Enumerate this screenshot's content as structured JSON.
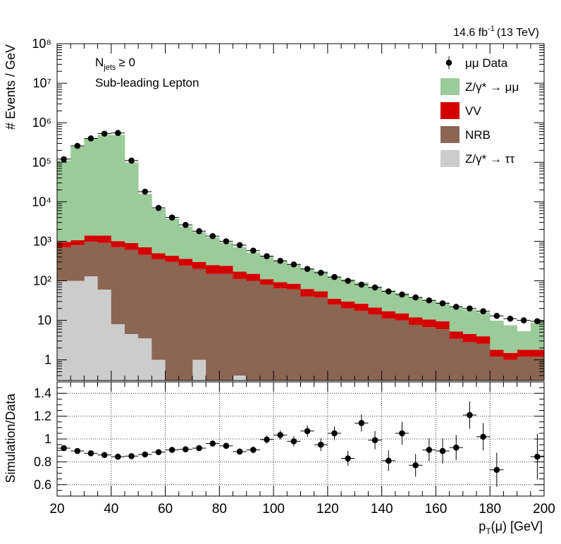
{
  "header": {
    "lumi_text": "14.6 fb",
    "lumi_sup": "-1",
    "energy_text": "(13 TeV)"
  },
  "annotations": {
    "njets_main": "N",
    "njets_sub": "jets",
    "njets_cond": "≥ 0",
    "selection": "Sub-leading Lepton"
  },
  "legend": [
    {
      "label": "μμ Data",
      "marker": "point",
      "color": "#000000"
    },
    {
      "label": "Z/γ* → μμ",
      "marker": "box",
      "color": "#9ccb9a"
    },
    {
      "label": "VV",
      "marker": "box",
      "color": "#d40000"
    },
    {
      "label": "NRB",
      "marker": "box",
      "color": "#8b6653"
    },
    {
      "label": "Z/γ* → ττ",
      "marker": "box",
      "color": "#cccccc"
    }
  ],
  "chart_data": [
    {
      "type": "bar",
      "subtype": "stacked-histogram",
      "log_y": true,
      "xlim": [
        20,
        200
      ],
      "ylim": [
        0.3,
        100000000
      ],
      "ylabel": "# Events / GeV",
      "yticks": [
        "1",
        "10",
        "10²",
        "10³",
        "10⁴",
        "10⁵",
        "10⁶",
        "10⁷",
        "10⁸"
      ],
      "bin_edges": [
        20,
        25,
        30,
        35,
        40,
        45,
        50,
        55,
        60,
        65,
        70,
        75,
        80,
        85,
        90,
        95,
        100,
        105,
        110,
        115,
        120,
        125,
        130,
        135,
        140,
        145,
        150,
        155,
        160,
        165,
        170,
        175,
        180,
        185,
        190,
        195,
        200
      ],
      "series": [
        {
          "name": "Z/γ* → ττ",
          "color": "#cccccc",
          "values": [
            100,
            100,
            130,
            60,
            8,
            4.5,
            3.5,
            1,
            0,
            0,
            1,
            0,
            0,
            0.4,
            0,
            0,
            0.25,
            0.25,
            0,
            0,
            0,
            0,
            0.25,
            0,
            0,
            0,
            0.28,
            0,
            0,
            0,
            0,
            0.25,
            0,
            0,
            0,
            0
          ]
        },
        {
          "name": "NRB",
          "color": "#8b6653",
          "values": [
            600,
            700,
            850,
            850,
            700,
            600,
            450,
            350,
            300,
            240,
            200,
            150,
            150,
            110,
            100,
            80,
            64,
            60,
            40,
            38,
            25,
            20,
            17,
            14,
            11,
            10,
            7.4,
            6.7,
            6,
            3.4,
            2.8,
            2.3,
            1.2,
            1,
            1.2,
            1.2
          ]
        },
        {
          "name": "VV",
          "color": "#d40000",
          "values": [
            260,
            270,
            420,
            480,
            300,
            300,
            250,
            150,
            130,
            120,
            100,
            100,
            90,
            60,
            50,
            30,
            28,
            24,
            22,
            16,
            10,
            10,
            9,
            7,
            6,
            5,
            4.2,
            3.8,
            3.5,
            1.8,
            1.7,
            1.4,
            0.6,
            0.5,
            0.6,
            0.6
          ]
        },
        {
          "name": "Z/γ* → μμ",
          "color": "#9ccb9a",
          "values": [
            110000,
            250000,
            390000,
            490000,
            490000,
            98000,
            15000,
            6100,
            3300,
            2000,
            1400,
            1000,
            700,
            540,
            370,
            300,
            230,
            180,
            140,
            120,
            93,
            80,
            65,
            50,
            40,
            33,
            27,
            22,
            19,
            16,
            14,
            12,
            8,
            6,
            3.5,
            7
          ]
        }
      ],
      "data": {
        "name": "μμ Data",
        "x": [
          22.5,
          27.5,
          32.5,
          37.5,
          42.5,
          47.5,
          52.5,
          57.5,
          62.5,
          67.5,
          72.5,
          77.5,
          82.5,
          87.5,
          92.5,
          97.5,
          102.5,
          107.5,
          112.5,
          117.5,
          122.5,
          127.5,
          132.5,
          137.5,
          142.5,
          147.5,
          152.5,
          157.5,
          162.5,
          167.5,
          172.5,
          177.5,
          182.5,
          187.5,
          192.5,
          197.5
        ],
        "y": [
          120000,
          260000,
          400000,
          530000,
          550000,
          110000,
          18000,
          7000,
          4000,
          2600,
          1800,
          1350,
          1000,
          800,
          580,
          420,
          320,
          260,
          200,
          160,
          125,
          100,
          80,
          68,
          54,
          45,
          38,
          32,
          27,
          22,
          20,
          17,
          13,
          11,
          10,
          9.5
        ]
      }
    },
    {
      "type": "scatter",
      "xlim": [
        20,
        200
      ],
      "ylim": [
        0.5,
        1.5
      ],
      "ylabel": "Simulation/Data",
      "xlabel": "p",
      "xlabel_sub": "T",
      "xlabel_rest": "(μ) [GeV]",
      "xticks": [
        "20",
        "40",
        "60",
        "80",
        "100",
        "120",
        "140",
        "160",
        "180",
        "200"
      ],
      "yticks": [
        "0.6",
        "0.8",
        "1",
        "1.2",
        "1.4"
      ],
      "x": [
        22.5,
        27.5,
        32.5,
        37.5,
        42.5,
        47.5,
        52.5,
        57.5,
        62.5,
        67.5,
        72.5,
        77.5,
        82.5,
        87.5,
        92.5,
        97.5,
        102.5,
        107.5,
        112.5,
        117.5,
        122.5,
        127.5,
        132.5,
        137.5,
        142.5,
        147.5,
        152.5,
        157.5,
        162.5,
        167.5,
        172.5,
        177.5,
        182.5,
        197.5
      ],
      "y": [
        0.92,
        0.895,
        0.875,
        0.86,
        0.845,
        0.85,
        0.865,
        0.885,
        0.905,
        0.91,
        0.92,
        0.96,
        0.94,
        0.89,
        0.905,
        0.995,
        1.035,
        0.98,
        1.07,
        0.95,
        1.05,
        0.83,
        1.14,
        0.99,
        0.81,
        1.05,
        0.77,
        0.905,
        0.895,
        0.925,
        1.21,
        1.02,
        0.73,
        0.845
      ],
      "yerr": [
        0.01,
        0.01,
        0.01,
        0.01,
        0.01,
        0.01,
        0.01,
        0.01,
        0.015,
        0.015,
        0.015,
        0.02,
        0.02,
        0.025,
        0.03,
        0.035,
        0.04,
        0.045,
        0.05,
        0.055,
        0.06,
        0.065,
        0.075,
        0.08,
        0.09,
        0.1,
        0.1,
        0.1,
        0.11,
        0.11,
        0.12,
        0.12,
        0.15,
        0.2
      ]
    }
  ]
}
